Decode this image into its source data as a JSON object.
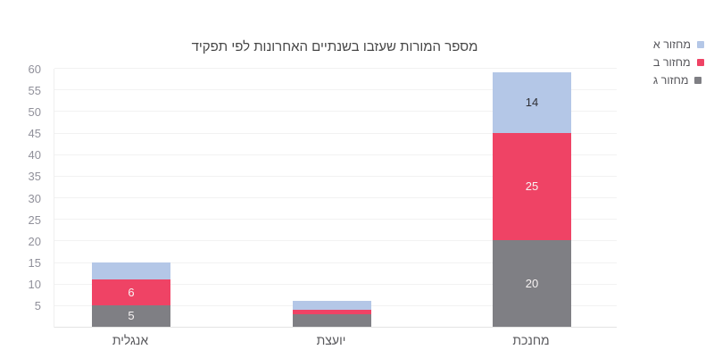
{
  "title": "מספר המורות שעזבו בשנתיים האחרונות לפי תפקיד",
  "chart_data": {
    "type": "bar",
    "stacked": true,
    "direction": "rtl",
    "title": "מספר המורות שעזבו בשנתיים האחרונות לפי תפקיד",
    "categories": [
      "אנגלית",
      "יועצת",
      "מחנכת"
    ],
    "series": [
      {
        "name": "מחזור א",
        "color": "#b4c7e7",
        "values": [
          4,
          2,
          14
        ],
        "shown_labels": [
          "",
          "",
          "14"
        ],
        "label_color": "#2f2f35"
      },
      {
        "name": "מחזור ב",
        "color": "#ef4365",
        "values": [
          6,
          1,
          25
        ],
        "shown_labels": [
          "6",
          "",
          "25"
        ],
        "label_color": "#f7f3f3"
      },
      {
        "name": "מחזור ג",
        "color": "#7f7f84",
        "values": [
          5,
          3,
          20
        ],
        "shown_labels": [
          "5",
          "",
          "20"
        ],
        "label_color": "#f7f3f3"
      }
    ],
    "stack_order_bottom_to_top": [
      "מחזור ג",
      "מחזור ב",
      "מחזור א"
    ],
    "totals": [
      15,
      6,
      59
    ],
    "ylim": [
      0,
      60
    ],
    "yticks": [
      5,
      10,
      15,
      20,
      25,
      30,
      35,
      40,
      45,
      50,
      55,
      60
    ],
    "grid": true,
    "legend_position": "top-right",
    "legend_entries": [
      "מחזור א",
      "מחזור ב",
      "מחזור ג"
    ]
  },
  "colors": {
    "background": "#ffffff",
    "gridline": "#f2f2f2",
    "baseline": "#e4e4e4",
    "y_tick_label": "#90909a",
    "category_label": "#58585c",
    "title": "#474747",
    "legend_label": "#55555a",
    "series_blue": "#b4c7e7",
    "series_red": "#ef4365",
    "series_gray": "#7f7f84"
  }
}
